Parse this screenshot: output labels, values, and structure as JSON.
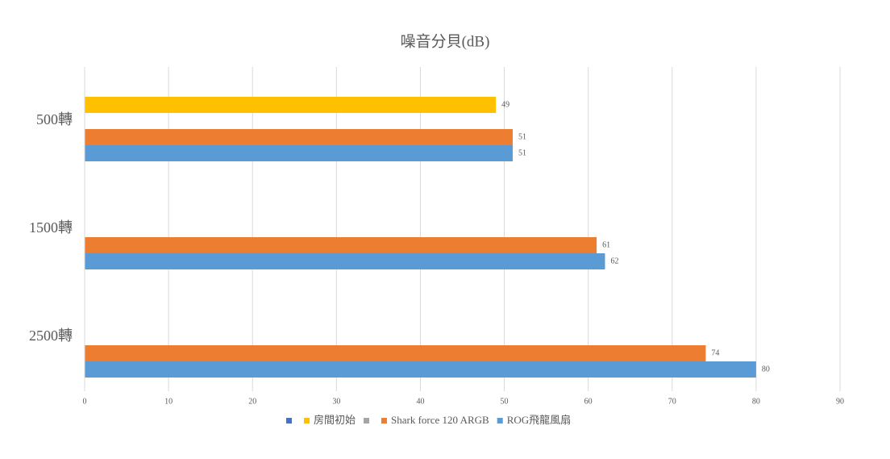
{
  "chart_data": {
    "type": "hbar",
    "title": "噪音分貝(dB)",
    "categories": [
      "500轉",
      "1500轉",
      "2500轉"
    ],
    "series": [
      {
        "color": "#4472c4",
        "values": [
          null,
          null,
          null
        ]
      },
      {
        "name": "房間初始",
        "color": "#ffc000",
        "values": [
          49,
          null,
          null
        ]
      },
      {
        "color": "#a5a5a5",
        "values": [
          null,
          null,
          null
        ]
      },
      {
        "name": "Shark force 120 ARGB",
        "color": "#ed7d31",
        "values": [
          51,
          61,
          74
        ]
      },
      {
        "name": "ROG飛龍風扇",
        "color": "#5b9bd5",
        "values": [
          51,
          62,
          80
        ]
      }
    ],
    "xlim": [
      0,
      90
    ],
    "xticks": [
      0,
      10,
      20,
      30,
      40,
      50,
      60,
      70,
      80,
      90
    ],
    "grid": true
  }
}
